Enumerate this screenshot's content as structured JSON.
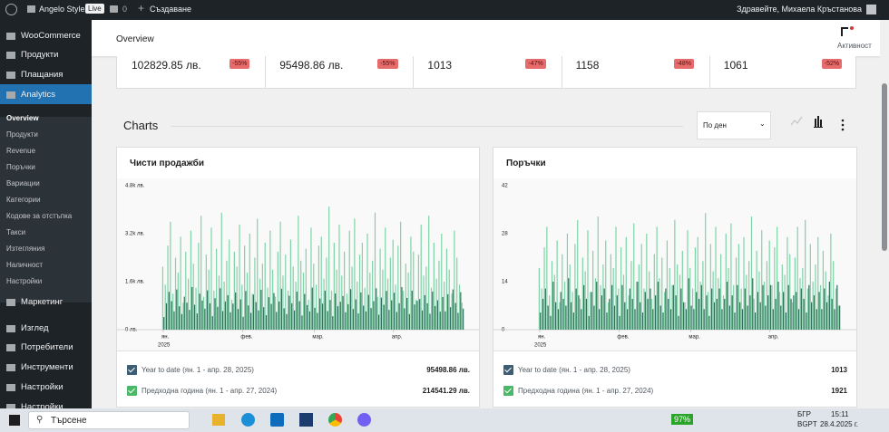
{
  "admin_bar": {
    "site": "Angelo Style",
    "live": "Live",
    "comments": "0",
    "create": "Създаване",
    "greeting": "Здравейте, Михаела Кръстанова"
  },
  "sidebar": {
    "top": [
      "WooCommerce",
      "Продукти",
      "Плащания",
      "Analytics"
    ],
    "sub": [
      "Overview",
      "Продукти",
      "Revenue",
      "Поръчки",
      "Вариации",
      "Категории",
      "Кодове за отстъпка",
      "Такси",
      "Изтегляния",
      "Наличност",
      "Настройки"
    ],
    "bottom": [
      "Маркетинг",
      "Изглед",
      "Потребители",
      "Инструменти",
      "Настройки",
      "Настройки"
    ]
  },
  "header": {
    "title": "Overview",
    "activity": "Активност"
  },
  "stats": [
    {
      "value": "102829.85 лв.",
      "delta": "-55%"
    },
    {
      "value": "95498.86 лв.",
      "delta": "-55%"
    },
    {
      "value": "1013",
      "delta": "-47%"
    },
    {
      "value": "1158",
      "delta": "-48%"
    },
    {
      "value": "1061",
      "delta": "-52%"
    }
  ],
  "charts_heading": "Charts",
  "interval": "По ден",
  "chart_data": [
    {
      "type": "bar",
      "title": "Чисти продажби",
      "ylim": [
        0,
        4800
      ],
      "yticks": [
        {
          "value": 0,
          "label": "0 лв."
        },
        {
          "value": 1600,
          "label": "1.6k лв."
        },
        {
          "value": 3200,
          "label": "3.2k лв."
        },
        {
          "value": 4800,
          "label": "4.8k лв."
        }
      ],
      "grid": false,
      "xticks": [
        {
          "value": 0,
          "label": "ян."
        },
        {
          "value": 31,
          "label": "фев."
        },
        {
          "value": 59,
          "label": "мар."
        },
        {
          "value": 90,
          "label": "апр."
        }
      ],
      "x_year": "2025",
      "series": [
        {
          "name": "Year to date (ян. 1 - апр. 28, 2025)",
          "color": "#2f6f5c",
          "total": "95498.86 лв.",
          "values": [
            420,
            880,
            1260,
            950,
            610,
            1340,
            780,
            520,
            1100,
            900,
            660,
            1420,
            830,
            540,
            1200,
            970,
            700,
            1310,
            880,
            450,
            1050,
            760,
            1380,
            620,
            940,
            1150,
            580,
            870,
            1240,
            690,
            1010,
            430,
            1290,
            810,
            560,
            1170,
            920,
            640,
            1330,
            750,
            480,
            1080,
            860,
            1220,
            590,
            940,
            1360,
            710,
            520,
            1130,
            880,
            640,
            1270,
            950,
            470,
            1190,
            820,
            610,
            1400,
            730,
            560,
            1040,
            870,
            1300,
            620,
            990,
            450,
            1210,
            780,
            930,
            1120,
            580,
            850,
            1350,
            690,
            1010,
            540,
            1240,
            800,
            610,
            1160,
            720,
            950,
            1380,
            500,
            1070,
            830,
            1290,
            660,
            980,
            1230,
            590,
            880,
            1420,
            710,
            1060,
            520,
            1300,
            840,
            960,
            1020,
            640,
            1150,
            880,
            530,
            1270,
            790,
            980,
            600,
            1090,
            610,
            1180,
            750,
            1340,
            890,
            560,
            1250,
            700
          ]
        },
        {
          "name": "Предходна година (ян. 1 - апр. 27, 2024)",
          "color": "#7fd3a6",
          "total": "214541.29 лв.",
          "values": [
            2100,
            1500,
            2800,
            3600,
            1200,
            2400,
            1900,
            3100,
            900,
            2600,
            1700,
            3300,
            2200,
            1400,
            2900,
            3800,
            1100,
            2500,
            2000,
            3400,
            1300,
            2700,
            1800,
            3900,
            1600,
            2300,
            3000,
            1000,
            2600,
            2100,
            3500,
            1500,
            2800,
            1900,
            3200,
            1200,
            2400,
            3700,
            1700,
            2200,
            2900,
            1400,
            3300,
            2000,
            1100,
            2600,
            3600,
            1800,
            2500,
            1300,
            3000,
            2100,
            1600,
            3800,
            2300,
            1900,
            2700,
            1000,
            3400,
            2200,
            1500,
            2800,
            3100,
            1700,
            2400,
            4100,
            1300,
            2900,
            2000,
            3500,
            1800,
            2600,
            1200,
            3300,
            2100,
            3700,
            1600,
            2500,
            2900,
            1400,
            3200,
            1900,
            2300,
            3900,
            1100,
            2700,
            2000,
            3400,
            1700,
            2400,
            3000,
            1500,
            2800,
            3600,
            1300,
            2200,
            1900,
            3100,
            2600,
            1000,
            2500,
            3500,
            1800,
            2100,
            3800,
            1400,
            2900,
            1700,
            2300,
            3200,
            1600,
            2700,
            2000,
            1200,
            3300,
            2400,
            1500,
            900
          ]
        }
      ]
    },
    {
      "type": "bar",
      "title": "Поръчки",
      "ylim": [
        0,
        42
      ],
      "yticks": [
        0,
        14,
        28,
        42
      ],
      "grid": false,
      "xticks": [
        {
          "value": 0,
          "label": "ян."
        },
        {
          "value": 31,
          "label": "фев."
        },
        {
          "value": 59,
          "label": "мар."
        },
        {
          "value": 90,
          "label": "апр."
        }
      ],
      "x_year": "2025",
      "series": [
        {
          "name": "Year to date (ян. 1 - апр. 28, 2025)",
          "color": "#2f6f5c",
          "total": "1013",
          "values": [
            5,
            9,
            12,
            7,
            4,
            14,
            8,
            6,
            11,
            9,
            7,
            15,
            8,
            5,
            12,
            10,
            6,
            13,
            9,
            4,
            11,
            7,
            14,
            6,
            10,
            12,
            5,
            9,
            13,
            7,
            10,
            4,
            13,
            8,
            6,
            12,
            9,
            6,
            14,
            8,
            5,
            11,
            9,
            12,
            6,
            10,
            14,
            7,
            5,
            12,
            9,
            6,
            13,
            10,
            4,
            12,
            8,
            6,
            15,
            7,
            6,
            11,
            9,
            13,
            6,
            10,
            4,
            12,
            8,
            9,
            12,
            6,
            9,
            14,
            7,
            10,
            5,
            13,
            8,
            6,
            12,
            7,
            10,
            15,
            5,
            11,
            8,
            13,
            7,
            10,
            13,
            6,
            9,
            14,
            7,
            11,
            5,
            13,
            9,
            10,
            11,
            6,
            12,
            9,
            5,
            13,
            8,
            10,
            6,
            11,
            6,
            12,
            8,
            14,
            9,
            6,
            13,
            7
          ]
        },
        {
          "name": "Предходна година (ян. 1 - апр. 27, 2024)",
          "color": "#7fd3a6",
          "total": "1921",
          "values": [
            18,
            12,
            24,
            30,
            10,
            20,
            16,
            26,
            8,
            22,
            14,
            28,
            19,
            11,
            25,
            32,
            9,
            21,
            17,
            29,
            11,
            23,
            15,
            33,
            13,
            19,
            26,
            8,
            22,
            18,
            30,
            12,
            24,
            16,
            27,
            10,
            20,
            31,
            14,
            19,
            25,
            12,
            28,
            17,
            9,
            22,
            30,
            15,
            21,
            11,
            26,
            18,
            13,
            32,
            19,
            16,
            23,
            8,
            29,
            18,
            12,
            24,
            27,
            14,
            20,
            34,
            11,
            25,
            17,
            30,
            15,
            22,
            10,
            28,
            18,
            31,
            13,
            21,
            25,
            12,
            27,
            16,
            20,
            33,
            9,
            23,
            17,
            29,
            14,
            20,
            26,
            13,
            24,
            30,
            11,
            19,
            16,
            27,
            22,
            8,
            21,
            30,
            15,
            18,
            32,
            12,
            25,
            14,
            19,
            27,
            13,
            23,
            17,
            10,
            28,
            20,
            12,
            7
          ]
        }
      ]
    }
  ],
  "taskbar": {
    "search": "Търсене",
    "battery": "97%",
    "lang": "БГР",
    "layout": "BGPT",
    "time": "15:11",
    "date": "28.4.2025 г."
  }
}
